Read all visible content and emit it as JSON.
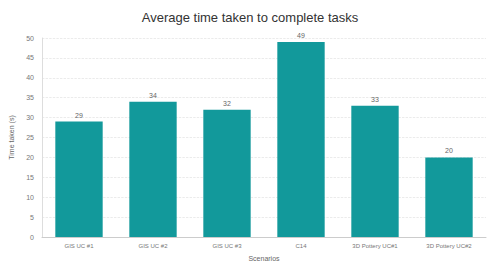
{
  "chart_data": {
    "type": "bar",
    "title": "Average time taken to complete tasks",
    "x_label": "Scenarios",
    "y_label": "Time taken (s)",
    "categories": [
      "GIS UC #1",
      "GIS UC #2",
      "GIS UC #3",
      "C14",
      "3D Pottery UC#1",
      "3D Pottery UC#2"
    ],
    "values": [
      29,
      34,
      32,
      49,
      33,
      20
    ],
    "color": "#12999b",
    "ylim": [
      0,
      50
    ],
    "yticks": [
      0,
      5,
      10,
      15,
      20,
      25,
      30,
      35,
      40,
      45,
      50
    ],
    "grid": true,
    "data_labels": true
  }
}
